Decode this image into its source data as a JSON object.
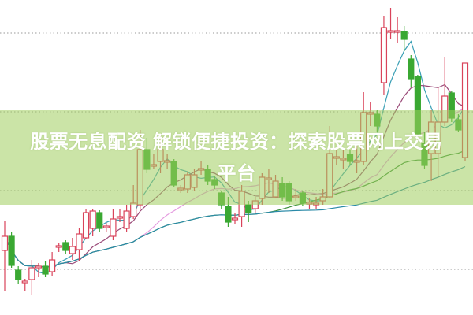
{
  "banner": {
    "line1": "股票无息配资 解锁便捷投资：探索股票网上交易",
    "line2": "平台"
  },
  "chart_data": {
    "type": "candlestick",
    "title": "",
    "xlabel": "",
    "ylabel": "",
    "ylim": [
      0,
      400
    ],
    "grid": "dotted horizontal",
    "colors": {
      "up": "#d9435a",
      "down": "#3aa832",
      "ma": [
        "#3a9fb5",
        "#9a4a78",
        "#e49adf",
        "#3b8f3b",
        "#2a8aa8"
      ]
    },
    "moving_average_periods": [
      5,
      10,
      20,
      40,
      60
    ],
    "candles": [
      [
        82,
        120,
        30,
        100
      ],
      [
        100,
        105,
        60,
        63
      ],
      [
        57,
        62,
        40,
        45
      ],
      [
        42,
        46,
        30,
        43
      ],
      [
        45,
        70,
        25,
        60
      ],
      [
        61,
        66,
        48,
        62
      ],
      [
        62,
        68,
        48,
        52
      ],
      [
        55,
        80,
        50,
        70
      ],
      [
        87,
        92,
        80,
        88
      ],
      [
        92,
        95,
        78,
        82
      ],
      [
        78,
        98,
        70,
        87
      ],
      [
        83,
        110,
        68,
        103
      ],
      [
        98,
        134,
        96,
        130
      ],
      [
        110,
        135,
        100,
        132
      ],
      [
        130,
        133,
        105,
        110
      ],
      [
        112,
        117,
        105,
        113
      ],
      [
        100,
        135,
        95,
        122
      ],
      [
        124,
        135,
        118,
        125
      ],
      [
        110,
        140,
        105,
        132
      ],
      [
        125,
        165,
        122,
        142
      ],
      [
        140,
        235,
        135,
        210
      ],
      [
        210,
        225,
        180,
        185
      ],
      [
        190,
        205,
        185,
        191
      ],
      [
        195,
        230,
        180,
        210
      ],
      [
        195,
        205,
        185,
        196
      ],
      [
        195,
        198,
        162,
        165
      ],
      [
        160,
        165,
        155,
        161
      ],
      [
        160,
        182,
        155,
        178
      ],
      [
        162,
        185,
        158,
        178
      ],
      [
        185,
        195,
        178,
        186
      ],
      [
        185,
        190,
        165,
        170
      ],
      [
        172,
        176,
        160,
        165
      ],
      [
        155,
        158,
        135,
        140
      ],
      [
        138,
        150,
        112,
        118
      ],
      [
        122,
        130,
        115,
        123
      ],
      [
        125,
        165,
        112,
        157
      ],
      [
        140,
        145,
        118,
        130
      ],
      [
        135,
        150,
        130,
        145
      ],
      [
        148,
        180,
        140,
        175
      ],
      [
        173,
        185,
        155,
        174
      ],
      [
        150,
        178,
        148,
        170
      ],
      [
        167,
        175,
        145,
        150
      ],
      [
        167,
        170,
        140,
        145
      ],
      [
        150,
        160,
        145,
        151
      ],
      [
        155,
        158,
        138,
        142
      ],
      [
        142,
        148,
        135,
        143
      ],
      [
        141,
        150,
        135,
        142
      ],
      [
        145,
        160,
        140,
        150
      ],
      [
        150,
        240,
        148,
        205
      ],
      [
        200,
        210,
        190,
        201
      ],
      [
        198,
        210,
        185,
        199
      ],
      [
        204,
        210,
        190,
        195
      ],
      [
        195,
        215,
        180,
        196
      ],
      [
        195,
        283,
        190,
        257
      ],
      [
        256,
        270,
        240,
        257
      ],
      [
        255,
        260,
        232,
        240
      ],
      [
        295,
        380,
        280,
        365
      ],
      [
        360,
        390,
        350,
        361
      ],
      [
        360,
        378,
        345,
        361
      ],
      [
        360,
        367,
        335,
        350
      ],
      [
        325,
        330,
        290,
        300
      ],
      [
        303,
        305,
        228,
        230
      ],
      [
        218,
        232,
        186,
        190
      ],
      [
        205,
        260,
        170,
        245
      ],
      [
        205,
        290,
        175,
        245
      ],
      [
        245,
        328,
        240,
        278
      ],
      [
        282,
        285,
        245,
        250
      ],
      [
        248,
        255,
        232,
        235
      ],
      [
        200,
        320,
        195,
        320
      ]
    ]
  }
}
